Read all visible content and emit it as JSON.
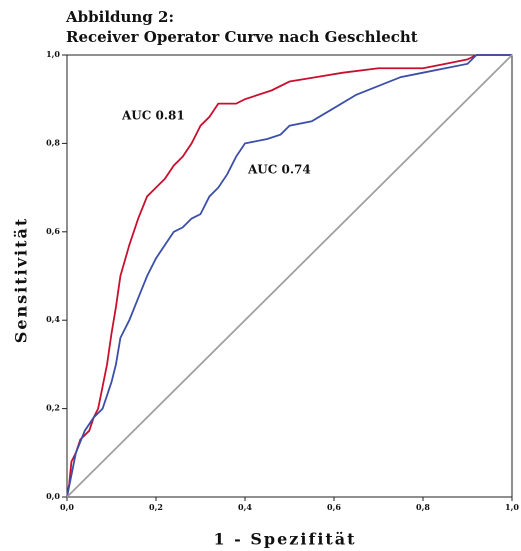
{
  "chart_data": {
    "type": "line",
    "title": [
      "Abbildung 2:",
      "Receiver Operator Curve nach Geschlecht"
    ],
    "x_label": "1 - Spezifität",
    "y_label": "Sensitivität",
    "annotations": [
      "AUC 0.81",
      "AUC 0.74"
    ],
    "xlim": [
      0,
      1
    ],
    "ylim": [
      0,
      1
    ],
    "xticks": [
      {
        "value": 0,
        "label": "0,0"
      },
      {
        "value": 0.2,
        "label": "0,2"
      },
      {
        "value": 0.4,
        "label": "0,4"
      },
      {
        "value": 0.6,
        "label": "0,6"
      },
      {
        "value": 0.8,
        "label": "0,8"
      },
      {
        "value": 1,
        "label": "1,0"
      }
    ],
    "yticks": [
      {
        "value": 0,
        "label": "0,0"
      },
      {
        "value": 0.2,
        "label": "0,2"
      },
      {
        "value": 0.4,
        "label": "0,4"
      },
      {
        "value": 0.6,
        "label": "0,6"
      },
      {
        "value": 0.8,
        "label": "0,8"
      },
      {
        "value": 1,
        "label": "1,0"
      }
    ],
    "series": [
      {
        "color": "#c8102e",
        "x": [
          0,
          0.005,
          0.01,
          0.02,
          0.03,
          0.05,
          0.06,
          0.07,
          0.08,
          0.09,
          0.1,
          0.11,
          0.12,
          0.14,
          0.16,
          0.18,
          0.2,
          0.22,
          0.24,
          0.26,
          0.28,
          0.3,
          0.32,
          0.34,
          0.38,
          0.4,
          0.46,
          0.5,
          0.56,
          0.62,
          0.7,
          0.8,
          0.85,
          0.9,
          0.92,
          1
        ],
        "values": [
          0,
          0.03,
          0.08,
          0.1,
          0.13,
          0.15,
          0.18,
          0.2,
          0.25,
          0.3,
          0.37,
          0.43,
          0.5,
          0.57,
          0.63,
          0.68,
          0.7,
          0.72,
          0.75,
          0.77,
          0.8,
          0.84,
          0.86,
          0.89,
          0.89,
          0.9,
          0.92,
          0.94,
          0.95,
          0.96,
          0.97,
          0.97,
          0.98,
          0.99,
          1,
          1
        ]
      },
      {
        "color": "#3b4fa8",
        "x": [
          0,
          0.01,
          0.02,
          0.04,
          0.06,
          0.08,
          0.1,
          0.11,
          0.12,
          0.14,
          0.16,
          0.18,
          0.2,
          0.22,
          0.24,
          0.26,
          0.28,
          0.3,
          0.32,
          0.34,
          0.36,
          0.38,
          0.4,
          0.45,
          0.48,
          0.5,
          0.55,
          0.6,
          0.65,
          0.7,
          0.75,
          0.8,
          0.85,
          0.9,
          0.92,
          1
        ],
        "values": [
          0,
          0.05,
          0.1,
          0.15,
          0.18,
          0.2,
          0.26,
          0.3,
          0.36,
          0.4,
          0.45,
          0.5,
          0.54,
          0.57,
          0.6,
          0.61,
          0.63,
          0.64,
          0.68,
          0.7,
          0.73,
          0.77,
          0.8,
          0.81,
          0.82,
          0.84,
          0.85,
          0.88,
          0.91,
          0.93,
          0.95,
          0.96,
          0.97,
          0.98,
          1,
          1
        ]
      },
      {
        "color": "#a0a0a0",
        "x": [
          0,
          1
        ],
        "values": [
          0,
          1
        ]
      }
    ]
  }
}
